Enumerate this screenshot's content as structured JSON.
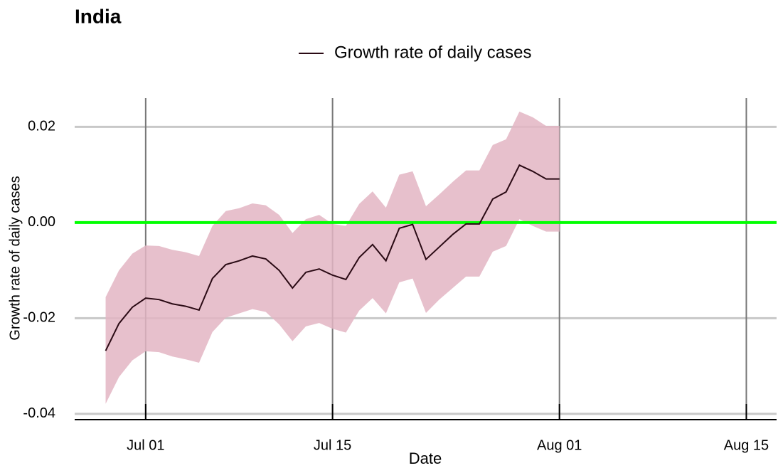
{
  "chart_data": {
    "type": "line",
    "title": "India",
    "xlabel": "Date",
    "ylabel": "Growth rate of daily cases",
    "x": [
      "Jun 28",
      "Jun 29",
      "Jun 30",
      "Jul 01",
      "Jul 02",
      "Jul 03",
      "Jul 04",
      "Jul 05",
      "Jul 06",
      "Jul 07",
      "Jul 08",
      "Jul 09",
      "Jul 10",
      "Jul 11",
      "Jul 12",
      "Jul 13",
      "Jul 14",
      "Jul 15",
      "Jul 16",
      "Jul 17",
      "Jul 18",
      "Jul 19",
      "Jul 20",
      "Jul 21",
      "Jul 22",
      "Jul 23",
      "Jul 24",
      "Jul 25",
      "Jul 26",
      "Jul 27",
      "Jul 28",
      "Jul 29",
      "Jul 30",
      "Jul 31",
      "Aug 01"
    ],
    "series": [
      {
        "name": "Growth rate of daily cases",
        "color": "#2a0a14",
        "values": [
          -0.0268,
          -0.0211,
          -0.0177,
          -0.0158,
          -0.0161,
          -0.017,
          -0.0175,
          -0.0183,
          -0.0117,
          -0.0088,
          -0.008,
          -0.007,
          -0.0076,
          -0.01,
          -0.0137,
          -0.0104,
          -0.0097,
          -0.011,
          -0.0119,
          -0.0073,
          -0.0046,
          -0.008,
          -0.0012,
          -0.0004,
          -0.0077,
          -0.0051,
          -0.0025,
          -0.0003,
          -0.0003,
          0.0049,
          0.0064,
          0.012,
          0.0107,
          0.0091,
          0.0091
        ]
      }
    ],
    "band": {
      "color": "#e3b5c3",
      "upper": [
        -0.0156,
        -0.01,
        -0.0065,
        -0.0048,
        -0.0049,
        -0.0057,
        -0.0062,
        -0.007,
        -0.0007,
        0.0024,
        0.003,
        0.004,
        0.0036,
        0.0016,
        -0.0022,
        0.0007,
        0.0016,
        -0.0003,
        -0.0007,
        0.0039,
        0.0065,
        0.0031,
        0.01,
        0.0107,
        0.0034,
        0.0059,
        0.0085,
        0.0109,
        0.0109,
        0.0162,
        0.0174,
        0.0232,
        0.022,
        0.0202,
        0.0202
      ],
      "lower": [
        -0.0379,
        -0.0323,
        -0.0288,
        -0.0269,
        -0.0271,
        -0.028,
        -0.0286,
        -0.0293,
        -0.0229,
        -0.0199,
        -0.019,
        -0.0181,
        -0.0187,
        -0.0213,
        -0.0248,
        -0.0217,
        -0.021,
        -0.0222,
        -0.023,
        -0.0184,
        -0.0158,
        -0.019,
        -0.0125,
        -0.0117,
        -0.0189,
        -0.0161,
        -0.0137,
        -0.0113,
        -0.0113,
        -0.0061,
        -0.0049,
        0.0007,
        -0.0007,
        -0.0019,
        -0.0019
      ]
    },
    "hline": 0,
    "hline_color": "#00ff00",
    "xlim": [
      "Jun 26",
      "Aug 17"
    ],
    "xticks": [
      "Jul 01",
      "Jul 15",
      "Aug 01",
      "Aug 15"
    ],
    "ylim": [
      -0.0412,
      0.026
    ],
    "yticks": [
      -0.04,
      -0.02,
      {
        "value": 0,
        "label": "0.00"
      },
      0.02
    ],
    "grid": true,
    "legend": "top"
  }
}
